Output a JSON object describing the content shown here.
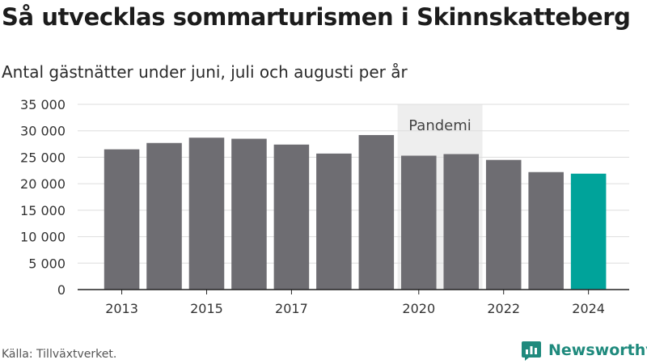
{
  "title": "Så utvecklas sommarturismen i Skinnskatteberg",
  "subtitle": "Antal gästnätter under juni, juli och augusti per år",
  "source": "Källa: Tillväxtverket.",
  "brand": {
    "name": "Newsworthy",
    "logo_icon": "bar-chart-bubble-icon"
  },
  "colors": {
    "bar": "#6e6d72",
    "highlight": "#00a39a",
    "shade": "#eeeeee",
    "grid": "#dddddd",
    "axis": "#222222",
    "brand": "#1f8a7d"
  },
  "chart_data": {
    "type": "bar",
    "categories": [
      "2013",
      "2014",
      "2015",
      "2016",
      "2017",
      "2018",
      "2019",
      "2020",
      "2021",
      "2022",
      "2023",
      "2024"
    ],
    "values": [
      26500,
      27700,
      28700,
      28500,
      27400,
      25700,
      29200,
      25300,
      25600,
      24500,
      22200,
      21900
    ],
    "highlight_index": 11,
    "x_tick_labels": [
      "2013",
      "",
      "2015",
      "",
      "2017",
      "",
      "",
      "2020",
      "",
      "2022",
      "",
      "2024"
    ],
    "y_ticks": [
      0,
      5000,
      10000,
      15000,
      20000,
      25000,
      30000,
      35000
    ],
    "y_tick_labels": [
      "0",
      "5 000",
      "10 000",
      "15 000",
      "20 000",
      "25 000",
      "30 000",
      "35 000"
    ],
    "ylim": [
      0,
      35000
    ],
    "grid": true,
    "annotation": {
      "label": "Pandemi",
      "from": "2020",
      "to": "2021"
    },
    "xlabel": "",
    "ylabel": ""
  }
}
